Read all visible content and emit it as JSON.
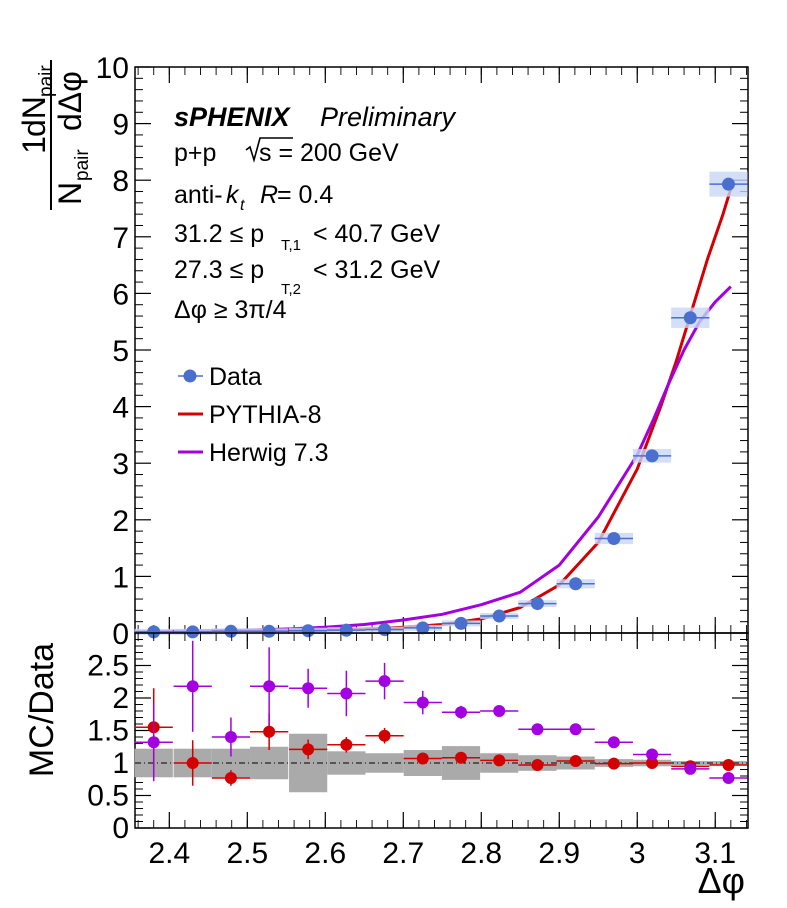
{
  "chart_data": [
    {
      "type": "scatter",
      "panel": "upper",
      "ylabel_parts": [
        "1",
        "N",
        "pair",
        "dN",
        "pair",
        "dΔφ"
      ],
      "ylim": [
        0,
        10
      ],
      "yticks": [
        "0",
        "1",
        "2",
        "3",
        "4",
        "5",
        "6",
        "7",
        "8",
        "9",
        "10"
      ],
      "annotations": {
        "experiment": "sPHENIX",
        "status": "Preliminary",
        "collision": "p+p",
        "energy": "s = 200 GeV",
        "algo_prefix": "anti-",
        "algo_k": "k",
        "algo_t": "t",
        "radius_R": "R",
        "radius_val": " = 0.4",
        "cut1": "31.2 ≤ p",
        "cut1_sub": "T,1",
        "cut1_tail": "< 40.7 GeV",
        "cut2": "27.3 ≤ p",
        "cut2_sub": "T,2",
        "cut2_tail": "< 31.2 GeV",
        "cut3": "Δφ  ≥ 3π/4"
      },
      "legend": {
        "data": "Data",
        "pythia": "PYTHIA-8",
        "herwig": "Herwig 7.3",
        "placement": "middle-left"
      },
      "series": [
        {
          "name": "Data",
          "color": "#4a6fcf",
          "x": [
            2.38,
            2.43,
            2.479,
            2.528,
            2.578,
            2.627,
            2.676,
            2.725,
            2.774,
            2.823,
            2.872,
            2.921,
            2.97,
            3.019,
            3.068,
            3.117
          ],
          "y": [
            0.02,
            0.02,
            0.03,
            0.03,
            0.04,
            0.05,
            0.06,
            0.09,
            0.17,
            0.3,
            0.52,
            0.87,
            1.67,
            3.13,
            5.57,
            7.93
          ],
          "xerr": 0.0245,
          "sys": [
            0.01,
            0.01,
            0.01,
            0.01,
            0.01,
            0.01,
            0.01,
            0.02,
            0.03,
            0.04,
            0.06,
            0.08,
            0.1,
            0.12,
            0.18,
            0.22
          ]
        },
        {
          "name": "PYTHIA-8",
          "color": "#d40000",
          "x": [
            2.356,
            2.4,
            2.45,
            2.5,
            2.55,
            2.6,
            2.65,
            2.7,
            2.75,
            2.8,
            2.85,
            2.9,
            2.95,
            3.0,
            3.03,
            3.05,
            3.07,
            3.09,
            3.11,
            3.12
          ],
          "y": [
            0.015,
            0.02,
            0.02,
            0.03,
            0.03,
            0.05,
            0.07,
            0.1,
            0.15,
            0.25,
            0.45,
            0.85,
            1.6,
            2.9,
            4.0,
            4.8,
            5.7,
            6.6,
            7.4,
            7.85
          ]
        },
        {
          "name": "Herwig 7.3",
          "color": "#a300e0",
          "x": [
            2.356,
            2.4,
            2.45,
            2.5,
            2.55,
            2.6,
            2.65,
            2.7,
            2.75,
            2.8,
            2.85,
            2.9,
            2.95,
            3.0,
            3.02,
            3.04,
            3.06,
            3.08,
            3.1,
            3.12
          ],
          "y": [
            0.02,
            0.03,
            0.04,
            0.05,
            0.07,
            0.1,
            0.15,
            0.23,
            0.33,
            0.5,
            0.72,
            1.2,
            2.05,
            3.15,
            3.75,
            4.4,
            5.0,
            5.5,
            5.85,
            6.12
          ]
        }
      ]
    },
    {
      "type": "scatter",
      "panel": "lower",
      "xlabel": "Δφ",
      "ylabel": "MC/Data",
      "xlim": [
        2.356,
        3.142
      ],
      "ylim": [
        0,
        3
      ],
      "xticks": [
        "2.4",
        "2.5",
        "2.6",
        "2.7",
        "2.8",
        "2.9",
        "3",
        "3.1"
      ],
      "yticks": [
        "0",
        "0.5",
        "1",
        "1.5",
        "2",
        "2.5"
      ],
      "x": [
        2.38,
        2.43,
        2.479,
        2.528,
        2.578,
        2.627,
        2.676,
        2.725,
        2.774,
        2.823,
        2.872,
        2.921,
        2.97,
        3.019,
        3.068,
        3.117
      ],
      "data_uncertainty": [
        0.22,
        0.22,
        0.22,
        0.25,
        0.45,
        0.18,
        0.15,
        0.2,
        0.26,
        0.15,
        0.12,
        0.1,
        0.06,
        0.05,
        0.03,
        0.03
      ],
      "series": [
        {
          "name": "PYTHIA-8",
          "color": "#d40000",
          "values": [
            1.55,
            1.0,
            0.77,
            1.48,
            1.21,
            1.28,
            1.42,
            1.07,
            1.08,
            1.04,
            0.97,
            1.03,
            0.99,
            1.0,
            0.95,
            0.97
          ],
          "errors": [
            0.6,
            0.35,
            0.12,
            0.28,
            0.15,
            0.12,
            0.12,
            0.05,
            0.05,
            0.04,
            0.03,
            0.03,
            0.02,
            0.02,
            0.02,
            0.02
          ]
        },
        {
          "name": "Herwig 7.3",
          "color": "#a300e0",
          "values": [
            1.32,
            2.18,
            1.4,
            2.18,
            2.15,
            2.07,
            2.26,
            1.93,
            1.78,
            1.8,
            1.52,
            1.52,
            1.32,
            1.13,
            0.91,
            0.77
          ],
          "errors": [
            0.6,
            0.7,
            0.3,
            0.6,
            0.3,
            0.35,
            0.28,
            0.18,
            0.1,
            0.08,
            0.05,
            0.05,
            0.04,
            0.04,
            0.03,
            0.03
          ]
        }
      ]
    }
  ]
}
